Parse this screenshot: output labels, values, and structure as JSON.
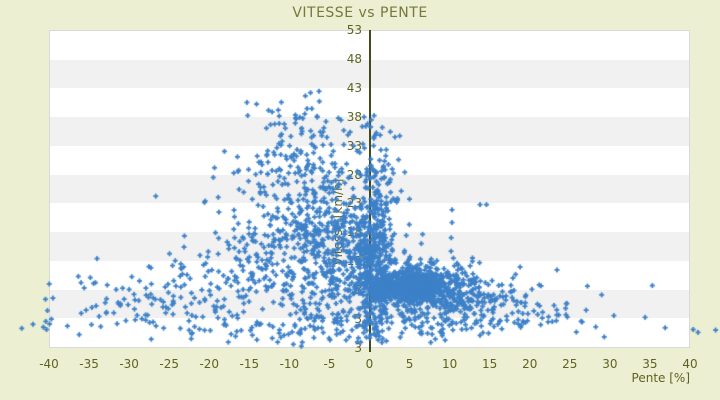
{
  "chart_data": {
    "type": "scatter",
    "title": "VITESSE vs PENTE",
    "xlabel": "Pente [%]",
    "ylabel": "Vitesse [km/h]",
    "x_ticks": [
      "-40",
      "-35",
      "-30",
      "-25",
      "-20",
      "-15",
      "-10",
      "-5",
      "0",
      "5",
      "10",
      "15",
      "20",
      "25",
      "30",
      "35",
      "40"
    ],
    "y_ticks": [
      "53",
      "48",
      "43",
      "38",
      "33",
      "28",
      "23",
      "18",
      "13",
      "8",
      "3",
      "3"
    ],
    "xlim": [
      -40,
      40
    ],
    "ylim": [
      -2,
      53
    ],
    "grid": "horizontal-alternating-bands",
    "legend": "none",
    "zero_line_x": 0,
    "marker": {
      "shape": "plus",
      "size": 5,
      "color": "#3d80c8"
    },
    "colors": {
      "page_background": "#ecefd2",
      "band_white": "#ffffff",
      "band_gray": "#f1f1f1",
      "plot_border": "#d9d9d9",
      "zero_line": "#424a1e",
      "title_text": "#76793a",
      "tick_text": "#5e6322"
    },
    "points_estimated": true,
    "n_points_estimate": 2800,
    "seed": 20240613,
    "clusters": [
      {
        "name": "core-blob",
        "cx": 5.2,
        "cy": 8.6,
        "sx": 2.0,
        "sy": 1.3,
        "n": 650
      },
      {
        "name": "core-halo",
        "cx": 6.5,
        "cy": 8.5,
        "sx": 3.8,
        "sy": 2.6,
        "n": 380
      },
      {
        "name": "right-mid",
        "cx": 12.0,
        "cy": 6.5,
        "sx": 4.5,
        "sy": 2.2,
        "n": 160
      },
      {
        "name": "right-tail",
        "cx": 20.0,
        "cy": 4.8,
        "sx": 5.5,
        "sy": 1.6,
        "n": 45
      },
      {
        "name": "zero-column",
        "cx": 1.0,
        "cy": 14.0,
        "sx": 0.9,
        "sy": 7.5,
        "n": 260
      },
      {
        "name": "zero-column-high",
        "cx": 1.2,
        "cy": 28.0,
        "sx": 1.2,
        "sy": 4.0,
        "n": 50
      },
      {
        "name": "zero-column-left",
        "cx": -0.6,
        "cy": 12.0,
        "sx": 0.7,
        "sy": 6.0,
        "n": 120
      },
      {
        "name": "left-near",
        "cx": -3.5,
        "cy": 13.0,
        "sx": 3.2,
        "sy": 6.0,
        "n": 330
      },
      {
        "name": "left-mid",
        "cx": -9.0,
        "cy": 15.0,
        "sx": 5.5,
        "sy": 6.5,
        "n": 330
      },
      {
        "name": "left-upper",
        "cx": -7.5,
        "cy": 28.0,
        "sx": 4.5,
        "sy": 3.5,
        "n": 140
      },
      {
        "name": "left-top",
        "cx": -8.5,
        "cy": 36.5,
        "sx": 4.0,
        "sy": 2.6,
        "n": 45
      },
      {
        "name": "left-far",
        "cx": -20.0,
        "cy": 8.0,
        "sx": 6.0,
        "sy": 4.0,
        "n": 130
      },
      {
        "name": "left-extreme",
        "cx": -31.0,
        "cy": 5.0,
        "sx": 5.0,
        "sy": 2.2,
        "n": 45
      },
      {
        "name": "bottom-smear",
        "cx": -6.0,
        "cy": 1.8,
        "sx": 11.0,
        "sy": 1.2,
        "n": 90
      },
      {
        "name": "right-low-smear",
        "cx": 12.0,
        "cy": 2.5,
        "sx": 7.0,
        "sy": 1.2,
        "n": 60
      }
    ],
    "outlier_points": [
      [
        -43.4,
        1.4
      ],
      [
        -42.0,
        2.1
      ],
      [
        -40.7,
        1.6
      ],
      [
        -40.4,
        2.6
      ],
      [
        -40.3,
        1.2
      ],
      [
        -39.7,
        3.0
      ],
      [
        -37.7,
        1.8
      ],
      [
        -36.0,
        9.3
      ],
      [
        -34.2,
        9.3
      ],
      [
        -31.5,
        2.2
      ],
      [
        -28.8,
        6.2
      ],
      [
        -27.0,
        2.5
      ],
      [
        -15.2,
        38.2
      ],
      [
        -12.6,
        39.1
      ],
      [
        -11.0,
        40.5
      ],
      [
        -10.5,
        36.0
      ],
      [
        -8.7,
        37.9
      ],
      [
        -8.0,
        41.6
      ],
      [
        -7.8,
        39.4
      ],
      [
        -7.2,
        39.4
      ],
      [
        -6.3,
        42.4
      ],
      [
        -4.8,
        33.2
      ],
      [
        -0.9,
        36.3
      ],
      [
        2.6,
        35.4
      ],
      [
        2.1,
        32.3
      ],
      [
        1.7,
        29.2
      ],
      [
        4.4,
        28.4
      ],
      [
        10.3,
        21.9
      ],
      [
        10.3,
        19.7
      ],
      [
        13.8,
        22.8
      ],
      [
        14.6,
        22.8
      ],
      [
        17.9,
        10.1
      ],
      [
        23.4,
        11.5
      ],
      [
        27.2,
        8.7
      ],
      [
        35.3,
        8.8
      ],
      [
        30.5,
        3.6
      ],
      [
        34.4,
        3.3
      ],
      [
        36.9,
        1.5
      ],
      [
        40.4,
        1.2
      ],
      [
        41.0,
        0.7
      ],
      [
        43.2,
        1.1
      ]
    ]
  }
}
